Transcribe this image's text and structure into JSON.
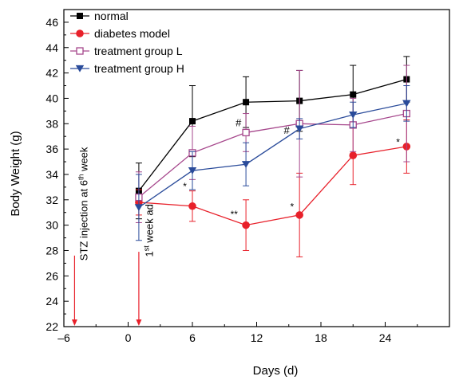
{
  "chart_data": {
    "type": "line",
    "title": "",
    "xlabel": "Days (d)",
    "ylabel": "Body Weight (g)",
    "xlim": [
      -6,
      30
    ],
    "ylim": [
      22,
      47
    ],
    "xticks": [
      -6,
      0,
      6,
      12,
      18,
      24
    ],
    "xtick_labels": [
      "–6",
      "0",
      "6",
      "12",
      "18",
      "24"
    ],
    "yticks": [
      22,
      24,
      26,
      28,
      30,
      32,
      34,
      36,
      38,
      40,
      42,
      44,
      46
    ],
    "grid": false,
    "legend_position": "top-left",
    "x": [
      1,
      6,
      11,
      16,
      21,
      26
    ],
    "series": [
      {
        "name": "normal",
        "color": "#000000",
        "marker": "square-filled",
        "values": [
          32.7,
          38.2,
          39.7,
          39.8,
          40.3,
          41.5
        ],
        "errors": [
          2.2,
          2.8,
          2.0,
          2.4,
          2.3,
          1.8
        ]
      },
      {
        "name": "diabetes model",
        "color": "#e8202a",
        "marker": "circle-filled",
        "values": [
          31.8,
          31.5,
          30.0,
          30.8,
          35.5,
          36.2
        ],
        "errors": [
          1.0,
          1.2,
          2.0,
          3.3,
          2.3,
          2.1
        ]
      },
      {
        "name": "treatment group L",
        "color": "#a6478c",
        "marker": "square-open",
        "values": [
          32.2,
          35.7,
          37.3,
          38.0,
          37.9,
          38.8
        ],
        "errors": [
          2.0,
          2.1,
          1.5,
          4.2,
          2.1,
          3.8
        ]
      },
      {
        "name": "treatment group H",
        "color": "#2a4b9a",
        "marker": "triangle-down-filled",
        "values": [
          31.4,
          34.3,
          34.8,
          37.6,
          38.7,
          39.6
        ],
        "errors": [
          2.6,
          1.5,
          1.7,
          0.8,
          1.0,
          1.4
        ]
      }
    ],
    "significance": [
      {
        "text": "*",
        "x": 5.3,
        "y": 32.8
      },
      {
        "text": "**",
        "x": 9.9,
        "y": 30.6
      },
      {
        "text": "*",
        "x": 15.3,
        "y": 31.2
      },
      {
        "text": "*",
        "x": 25.2,
        "y": 36.3
      },
      {
        "text": "#",
        "x": 10.3,
        "y": 37.8
      },
      {
        "text": "#",
        "x": 14.8,
        "y": 37.2
      }
    ],
    "annotations": [
      {
        "text_main": "STZ injection at 6",
        "text_sup": "th",
        "text_tail": " week",
        "arrow_x": -5,
        "arrow_top_y": 27.6,
        "anchor_y": 27.2,
        "text_x": -3.8
      },
      {
        "text_main": "1",
        "text_sup": "st",
        "text_tail": " week ad",
        "arrow_x": 1,
        "arrow_top_y": 27.9,
        "anchor_y": 27.5,
        "text_x": 2.3
      }
    ]
  }
}
